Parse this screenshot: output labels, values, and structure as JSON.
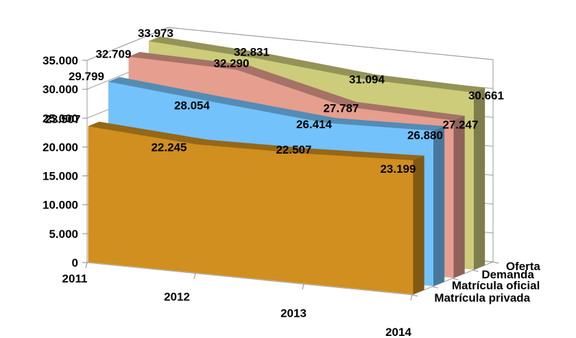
{
  "chart_data": {
    "type": "area",
    "subtype": "3d-area",
    "categories": [
      "2011",
      "2012",
      "2013",
      "2014"
    ],
    "series": [
      {
        "name": "Oferta",
        "values": [
          33973,
          32831,
          31094,
          30661
        ],
        "color": "#CCCC7A"
      },
      {
        "name": "Demanda",
        "values": [
          32709,
          32290,
          27787,
          27247
        ],
        "color": "#E69E8F"
      },
      {
        "name": "Matrícula oficial",
        "values": [
          29799,
          28054,
          26414,
          26880
        ],
        "color": "#73C2FB"
      },
      {
        "name": "Matrícula privada",
        "values": [
          23507,
          22245,
          22507,
          23199
        ],
        "color": "#D08F1E"
      }
    ],
    "data_labels": {
      "Oferta": [
        "33.973",
        "32.831",
        "31.094",
        "30.661"
      ],
      "Demanda": [
        "32.709",
        "32.290",
        "27.787",
        "27.247"
      ],
      "Matrícula oficial": [
        "29.799",
        "28.054",
        "26.414",
        "26.880"
      ],
      "Matrícula privada": [
        "23.507",
        "22.245",
        "22.507",
        "23.199"
      ]
    },
    "y_ticks": [
      "0",
      "5.000",
      "10.000",
      "15.000",
      "20.000",
      "25.000",
      "30.000",
      "35.000"
    ],
    "ylim": [
      0,
      35000
    ],
    "title": "",
    "xlabel": "",
    "ylabel": "",
    "grid": true
  }
}
